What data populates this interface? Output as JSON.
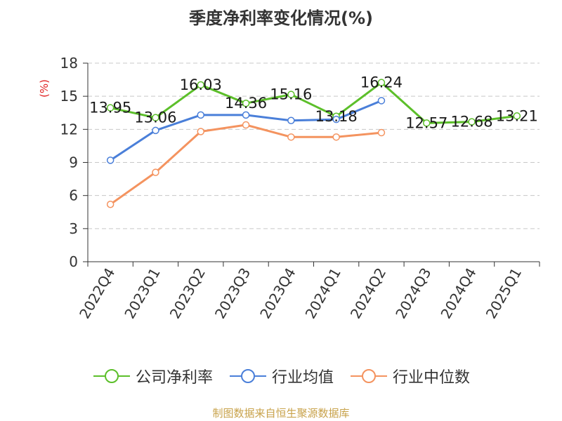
{
  "chart_data": {
    "type": "line",
    "title": "季度净利率变化情况(%)",
    "ylabel": "(%)",
    "xlabel": "",
    "ylim": [
      0,
      18
    ],
    "yticks": [
      0,
      3,
      6,
      9,
      12,
      15,
      18
    ],
    "categories": [
      "2022Q4",
      "2023Q1",
      "2023Q2",
      "2023Q3",
      "2023Q4",
      "2024Q1",
      "2024Q2",
      "2024Q3",
      "2024Q4",
      "2025Q1"
    ],
    "grid": true,
    "legend_position": "bottom",
    "series": [
      {
        "name": "公司净利率",
        "color": "#5cbf2a",
        "show_labels": true,
        "values": [
          13.95,
          13.06,
          16.03,
          14.36,
          15.16,
          13.18,
          16.24,
          12.57,
          12.68,
          13.21
        ]
      },
      {
        "name": "行业均值",
        "color": "#4a7fd9",
        "show_labels": false,
        "values": [
          9.2,
          11.9,
          13.3,
          13.3,
          12.8,
          12.9,
          14.6,
          null,
          null,
          null
        ]
      },
      {
        "name": "行业中位数",
        "color": "#f4935f",
        "show_labels": false,
        "values": [
          5.2,
          8.1,
          11.8,
          12.4,
          11.3,
          11.3,
          11.7,
          null,
          null,
          null
        ]
      }
    ]
  },
  "footer": {
    "source": "制图数据来自恒生聚源数据库"
  }
}
